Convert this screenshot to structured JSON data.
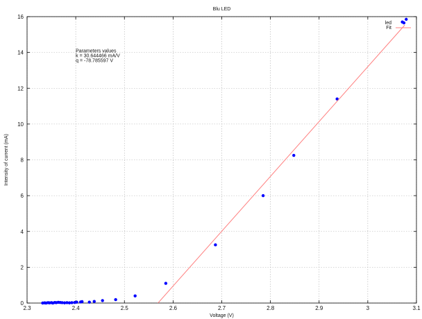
{
  "chart_data": {
    "type": "scatter",
    "title": "Blu LED",
    "xlabel": "Voltage (V)",
    "ylabel": "Intensity of current (mA)",
    "xlim": [
      2.3,
      3.1
    ],
    "ylim": [
      0,
      16
    ],
    "x_ticks": [
      "2.3",
      "2.4",
      "2.5",
      "2.6",
      "2.7",
      "2.8",
      "2.9",
      "3",
      "3.1"
    ],
    "y_ticks": [
      "0",
      "2",
      "4",
      "6",
      "8",
      "10",
      "12",
      "14",
      "16"
    ],
    "grid": true,
    "legend_position": "top-right",
    "series": [
      {
        "name": "led",
        "kind": "points",
        "color": "#0000ff",
        "points": [
          [
            2.332,
            0.0
          ],
          [
            2.336,
            0.01
          ],
          [
            2.339,
            0.0
          ],
          [
            2.343,
            0.02
          ],
          [
            2.346,
            0.01
          ],
          [
            2.35,
            0.02
          ],
          [
            2.353,
            0.0
          ],
          [
            2.357,
            0.03
          ],
          [
            2.36,
            0.02
          ],
          [
            2.364,
            0.04
          ],
          [
            2.368,
            0.03
          ],
          [
            2.372,
            0.02
          ],
          [
            2.377,
            0.01
          ],
          [
            2.382,
            0.02
          ],
          [
            2.387,
            0.01
          ],
          [
            2.392,
            0.02
          ],
          [
            2.398,
            0.03
          ],
          [
            2.402,
            0.05
          ],
          [
            2.41,
            0.06
          ],
          [
            2.413,
            0.08
          ],
          [
            2.428,
            0.05
          ],
          [
            2.438,
            0.09
          ],
          [
            2.455,
            0.14
          ],
          [
            2.482,
            0.19
          ],
          [
            2.522,
            0.4
          ],
          [
            2.585,
            1.1
          ],
          [
            2.687,
            3.25
          ],
          [
            2.785,
            6.0
          ],
          [
            2.848,
            8.25
          ],
          [
            2.937,
            11.4
          ],
          [
            3.071,
            15.7
          ],
          [
            3.079,
            15.85
          ]
        ]
      },
      {
        "name": "Fit",
        "kind": "line",
        "color": "#ff7f7f",
        "points": [
          [
            2.569,
            0.0
          ],
          [
            3.076,
            15.53
          ]
        ]
      }
    ],
    "annotation": {
      "lines": [
        "Parameters values",
        "k = 30.644466 mA/V",
        "q = -78.785597 V"
      ],
      "x": 2.4,
      "y": 14.0
    }
  }
}
